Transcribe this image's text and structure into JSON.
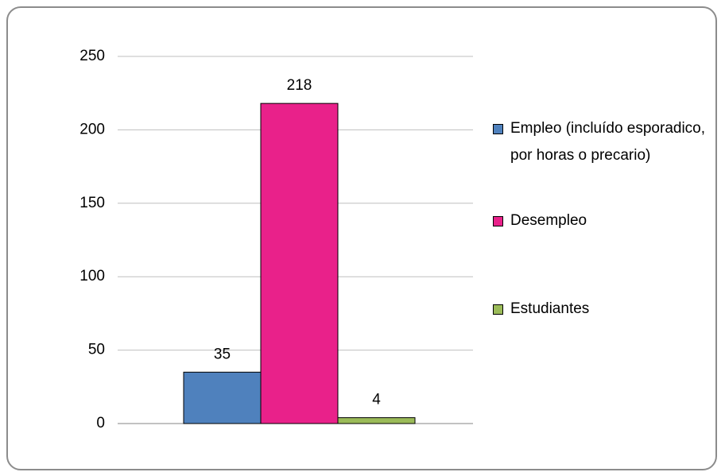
{
  "chart_data": {
    "type": "bar",
    "categories": [
      null
    ],
    "series": [
      {
        "name": "Empleo (incluído esporadico, por horas o precario)",
        "color": "#4f81bd",
        "values": [
          35
        ]
      },
      {
        "name": "Desempleo",
        "color": "#e9218a",
        "values": [
          218
        ]
      },
      {
        "name": "Estudiantes",
        "color": "#9bbb59",
        "values": [
          4
        ]
      }
    ],
    "ylim": [
      0,
      250
    ],
    "yticks": [
      0,
      50,
      100,
      150,
      200,
      250
    ],
    "grid": true,
    "legend": "right"
  }
}
